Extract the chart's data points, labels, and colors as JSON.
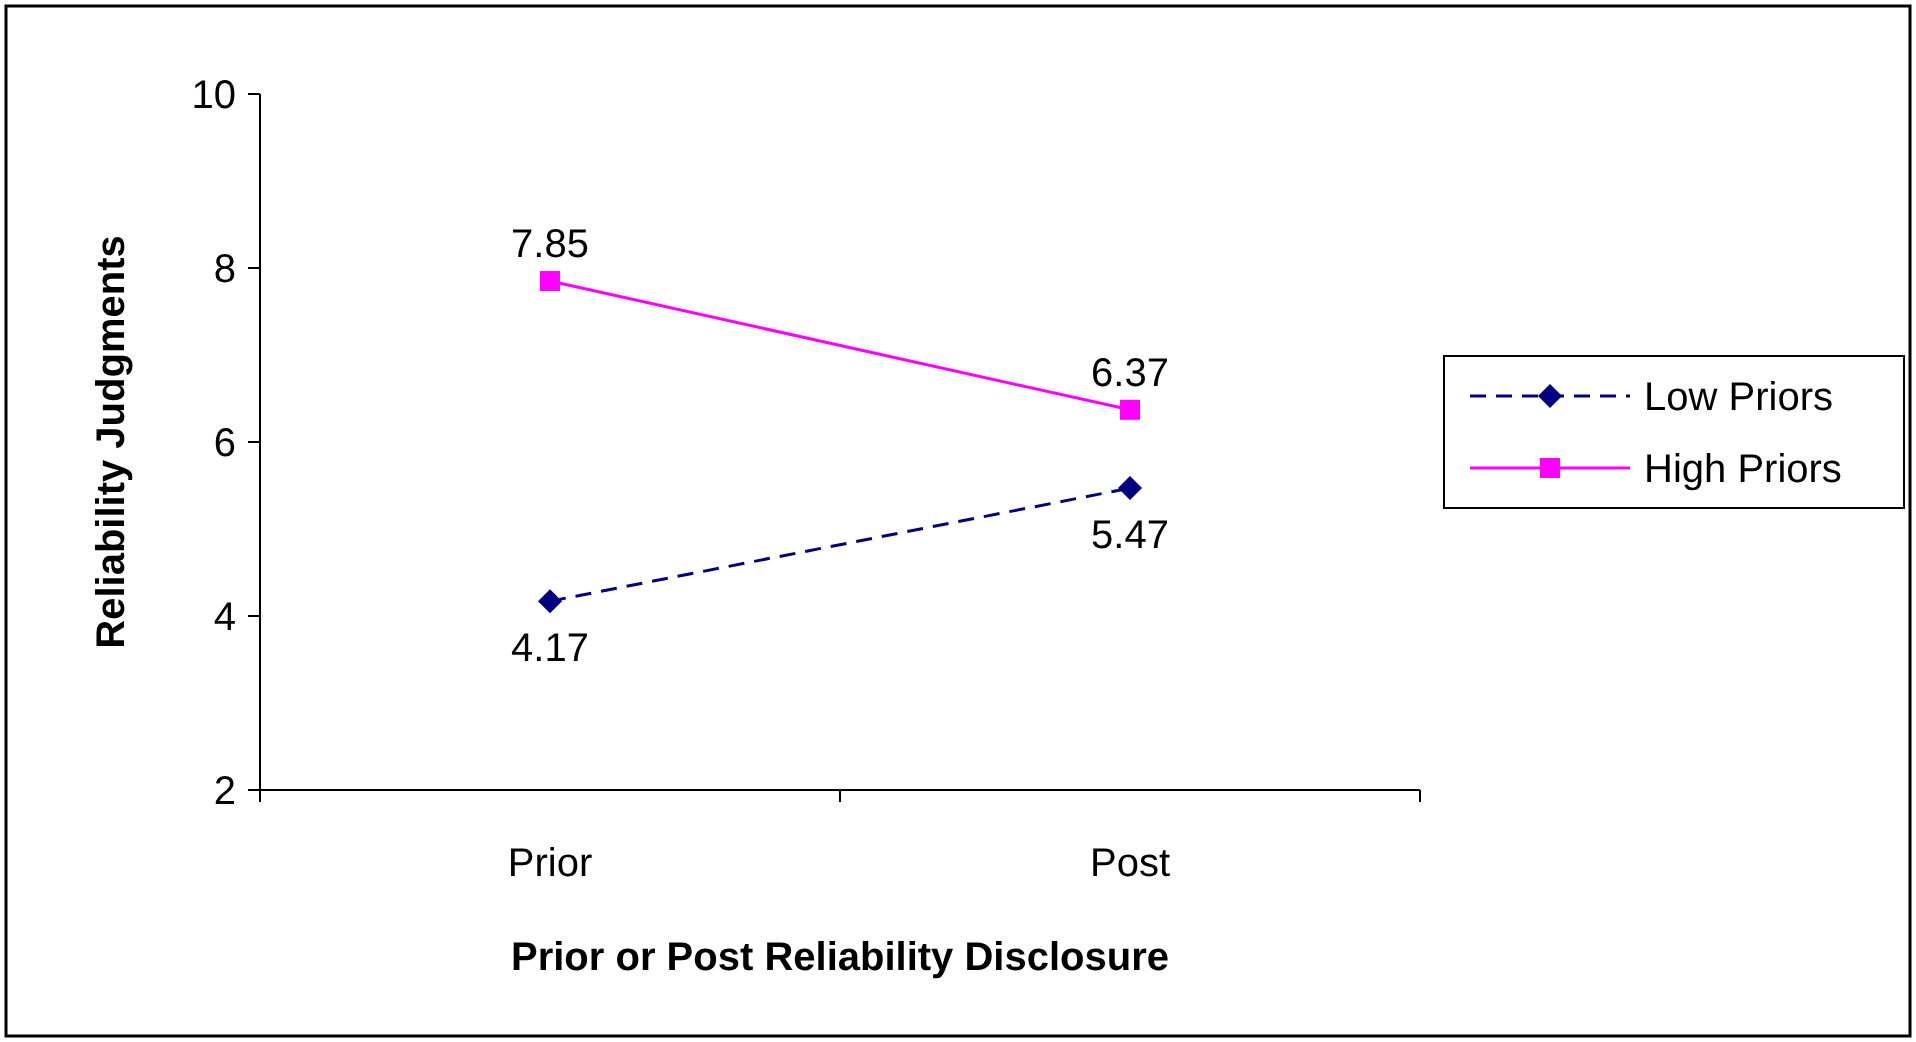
{
  "chart_data": {
    "type": "line",
    "xlabel": "Prior or Post Reliability Disclosure",
    "ylabel": "Reliability Judgments",
    "categories": [
      "Prior",
      "Post"
    ],
    "ylim": [
      2,
      10
    ],
    "yticks": [
      2,
      4,
      6,
      8,
      10
    ],
    "grid": false,
    "legend": "right",
    "data_labels": true,
    "series": [
      {
        "name": "Low Priors",
        "color": "#000080",
        "values": [
          4.17,
          5.47
        ],
        "marker": "diamond",
        "line_style": "dashed"
      },
      {
        "name": "High Priors",
        "color": "#ff00ff",
        "values": [
          7.85,
          6.37
        ],
        "marker": "square",
        "line_style": "solid"
      }
    ]
  }
}
